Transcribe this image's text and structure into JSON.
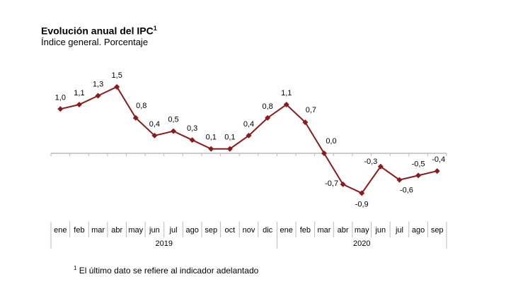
{
  "chart_data": {
    "type": "line",
    "title": "Evolución anual del IPC",
    "title_superscript": "1",
    "subtitle": "Índice general. Porcentaje",
    "categories": [
      "ene",
      "feb",
      "mar",
      "abr",
      "may",
      "jun",
      "jul",
      "ago",
      "sep",
      "oct",
      "nov",
      "dic",
      "ene",
      "feb",
      "mar",
      "abr",
      "may",
      "jun",
      "jul",
      "ago",
      "sep"
    ],
    "years": [
      {
        "label": "2019",
        "count": 12
      },
      {
        "label": "2020",
        "count": 9
      }
    ],
    "values": [
      1.0,
      1.1,
      1.3,
      1.5,
      0.8,
      0.4,
      0.5,
      0.3,
      0.1,
      0.1,
      0.4,
      0.8,
      1.1,
      0.7,
      0.0,
      -0.7,
      -0.9,
      -0.3,
      -0.6,
      -0.5,
      -0.4
    ],
    "data_labels": [
      "1,0",
      "1,1",
      "1,3",
      "1,5",
      "0,8",
      "0,4",
      "0,5",
      "0,3",
      "0,1",
      "0,1",
      "0,4",
      "0,8",
      "1,1",
      "0,7",
      "0,0",
      "-0,7",
      "-0,9",
      "-0,3",
      "-0,6",
      "-0,5",
      "-0,4"
    ],
    "ylim": [
      -0.9,
      1.5
    ],
    "grid": false,
    "marker": "diamond",
    "line_color": "#8B1A1A",
    "footnote_mark": "1",
    "footnote": "El último dato se refiere al indicador adelantado"
  }
}
